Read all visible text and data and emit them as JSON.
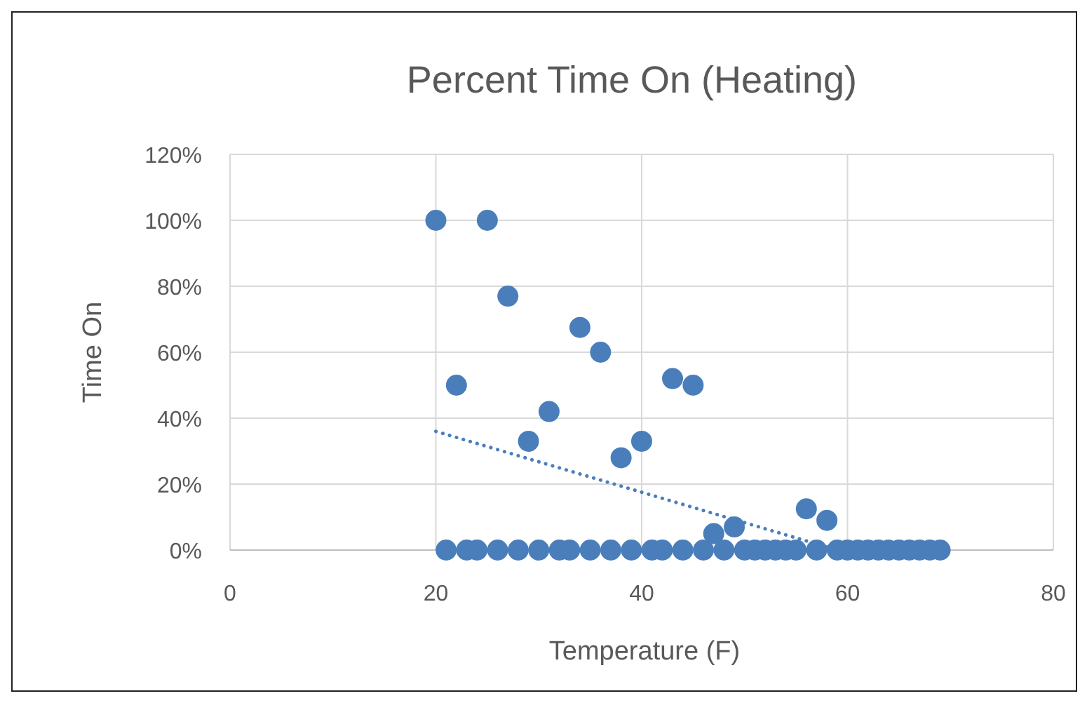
{
  "chart_data": {
    "type": "scatter",
    "title": "Percent Time On (Heating)",
    "xlabel": "Temperature (F)",
    "ylabel": "Time On",
    "xlim": [
      0,
      80
    ],
    "xticks": [
      0,
      20,
      40,
      60,
      80
    ],
    "ylim": [
      0,
      120
    ],
    "yticks": [
      {
        "value": 0,
        "label": "0%"
      },
      {
        "value": 20,
        "label": "20%"
      },
      {
        "value": 40,
        "label": "40%"
      },
      {
        "value": 60,
        "label": "60%"
      },
      {
        "value": 80,
        "label": "80%"
      },
      {
        "value": 100,
        "label": "100%"
      },
      {
        "value": 120,
        "label": "120%"
      }
    ],
    "grid": true,
    "marker": "circle",
    "series": [
      {
        "color": "#4a7ebb",
        "x": [
          20,
          25,
          22,
          27,
          29,
          31,
          34,
          36,
          38,
          40,
          43,
          45,
          47,
          49,
          56,
          58,
          21,
          23,
          24,
          26,
          28,
          30,
          32,
          33,
          35,
          37,
          39,
          41,
          42,
          44,
          46,
          48,
          50,
          51,
          52,
          53,
          54,
          55,
          57,
          59,
          60,
          61,
          62,
          63,
          64,
          65,
          66,
          67,
          68,
          69
        ],
        "values": [
          100,
          100,
          50,
          77,
          33,
          42,
          67.5,
          60,
          28,
          33,
          52,
          50,
          5,
          7,
          12.5,
          9,
          0,
          0,
          0,
          0,
          0,
          0,
          0,
          0,
          0,
          0,
          0,
          0,
          0,
          0,
          0,
          0,
          0,
          0,
          0,
          0,
          0,
          0,
          0,
          0,
          0,
          0,
          0,
          0,
          0,
          0,
          0,
          0,
          0,
          0
        ]
      },
      {
        "type": "line",
        "color": "#4a7ebb",
        "line_style": "dotted",
        "marker": "none",
        "x": [
          20,
          59
        ],
        "values": [
          36,
          0
        ]
      }
    ]
  }
}
